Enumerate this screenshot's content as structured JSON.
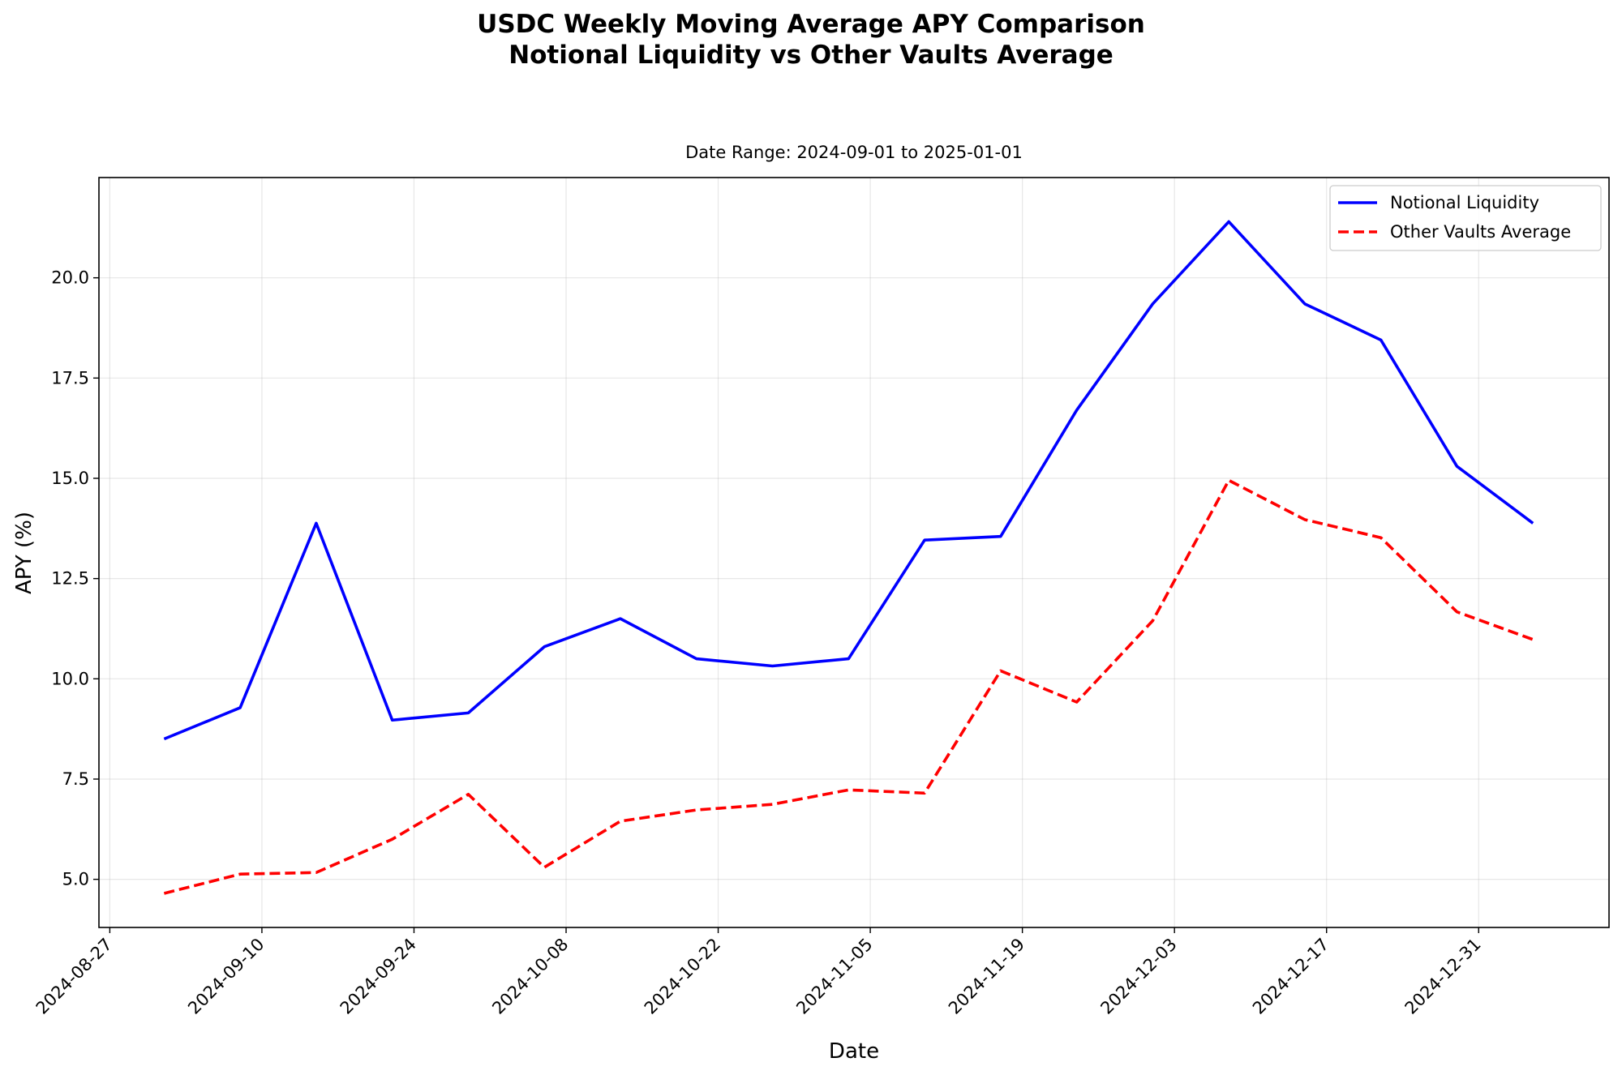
{
  "chart_data": {
    "type": "line",
    "title": "USDC Weekly Moving Average APY Comparison",
    "title_line2": "Notional Liquidity vs Other Vaults Average",
    "subtitle": "Date Range: 2024-09-01 to 2025-01-01",
    "xlabel": "Date",
    "ylabel": "APY (%)",
    "x_tick_labels": [
      "2024-08-27",
      "2024-09-10",
      "2024-09-24",
      "2024-10-08",
      "2024-10-22",
      "2024-11-05",
      "2024-11-19",
      "2024-12-03",
      "2024-12-17",
      "2024-12-31"
    ],
    "y_tick_labels": [
      "5.0",
      "7.5",
      "10.0",
      "12.5",
      "15.0",
      "17.5",
      "20.0"
    ],
    "ylim": [
      3.8,
      22.5
    ],
    "xlim": [
      "2024-08-26",
      "2025-01-12"
    ],
    "grid": true,
    "legend_position": "top-right",
    "x": [
      "2024-09-01",
      "2024-09-08",
      "2024-09-15",
      "2024-09-22",
      "2024-09-29",
      "2024-10-06",
      "2024-10-13",
      "2024-10-20",
      "2024-10-27",
      "2024-11-03",
      "2024-11-10",
      "2024-11-17",
      "2024-11-24",
      "2024-12-01",
      "2024-12-08",
      "2024-12-15",
      "2024-12-22",
      "2024-12-29",
      "2025-01-05"
    ],
    "series": [
      {
        "name": "Notional Liquidity",
        "color": "#0000ff",
        "style": "solid",
        "values": [
          8.5,
          9.28,
          13.88,
          8.97,
          9.15,
          10.8,
          11.5,
          10.5,
          10.32,
          10.5,
          13.46,
          13.55,
          16.7,
          19.35,
          21.4,
          19.35,
          18.45,
          15.3,
          13.88
        ]
      },
      {
        "name": "Other Vaults Average",
        "color": "#ff0000",
        "style": "dashed",
        "values": [
          4.65,
          5.13,
          5.17,
          6.0,
          7.12,
          5.3,
          6.45,
          6.73,
          6.87,
          7.23,
          7.15,
          10.2,
          9.42,
          11.45,
          14.95,
          13.97,
          13.52,
          11.67,
          10.98
        ]
      }
    ]
  }
}
